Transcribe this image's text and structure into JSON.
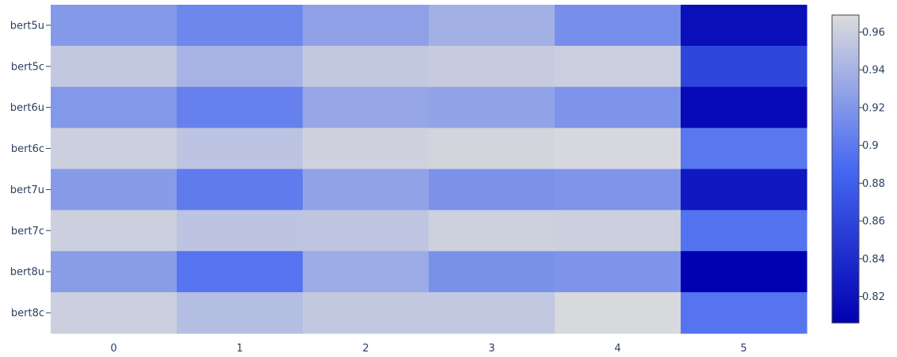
{
  "chart_data": {
    "type": "heatmap",
    "title": "",
    "xlabel": "",
    "ylabel": "",
    "x_categories": [
      "0",
      "1",
      "2",
      "3",
      "4",
      "5"
    ],
    "y_categories": [
      "bert5u",
      "bert5c",
      "bert6u",
      "bert6c",
      "bert7u",
      "bert7c",
      "bert8u",
      "bert8c"
    ],
    "z": [
      [
        0.922,
        0.909,
        0.927,
        0.938,
        0.914,
        0.818
      ],
      [
        0.955,
        0.94,
        0.955,
        0.957,
        0.959,
        0.861
      ],
      [
        0.921,
        0.905,
        0.931,
        0.929,
        0.918,
        0.814
      ],
      [
        0.96,
        0.952,
        0.962,
        0.964,
        0.966,
        0.898
      ],
      [
        0.923,
        0.901,
        0.928,
        0.917,
        0.919,
        0.825
      ],
      [
        0.96,
        0.952,
        0.953,
        0.961,
        0.96,
        0.895
      ],
      [
        0.924,
        0.896,
        0.934,
        0.916,
        0.918,
        0.807
      ],
      [
        0.96,
        0.947,
        0.955,
        0.955,
        0.967,
        0.896
      ]
    ],
    "zmin": 0.806,
    "zmax": 0.969,
    "colorscale": [
      [
        0,
        "#0000b0"
      ],
      [
        0.5,
        "#4668f2"
      ],
      [
        1,
        "#dcdcdc"
      ]
    ],
    "colorbar": {
      "tickvals": [
        0.96,
        0.94,
        0.92,
        0.9,
        0.88,
        0.86,
        0.84,
        0.82
      ],
      "ticklabels": [
        "0.96",
        "0.94",
        "0.92",
        "0.9",
        "0.88",
        "0.86",
        "0.84",
        "0.82"
      ]
    },
    "colors": {
      "tick_text": "#2a3f5f",
      "colorbar_border": "#444444"
    }
  }
}
